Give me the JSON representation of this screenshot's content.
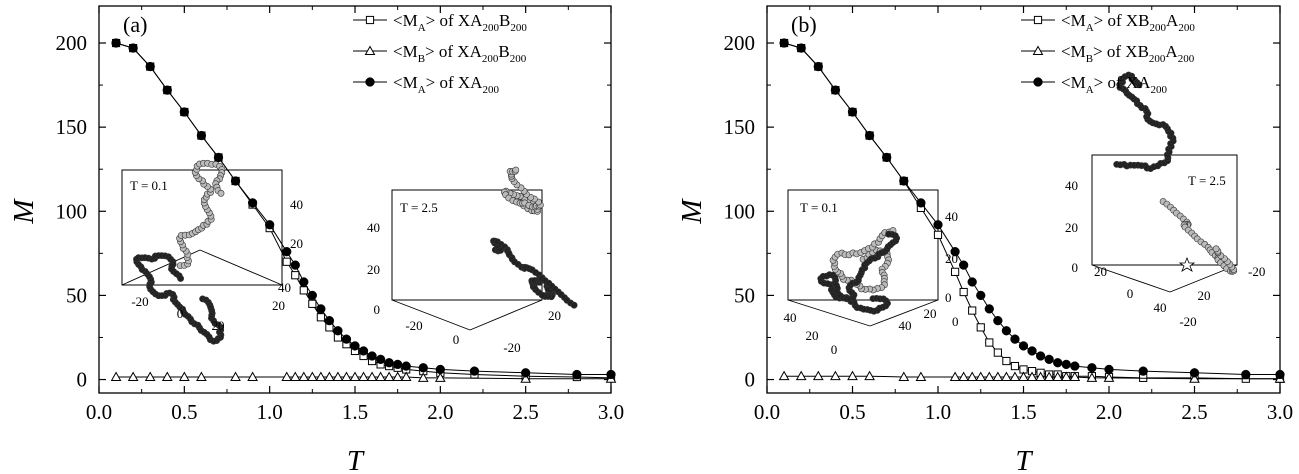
{
  "chart_data": [
    {
      "type": "scatter",
      "panel_label": "(a)",
      "xlabel": "T",
      "ylabel": "M",
      "xlim": [
        0.0,
        3.0
      ],
      "ylim": [
        -8,
        222
      ],
      "x_ticks": [
        "0.0",
        "0.5",
        "1.0",
        "1.5",
        "2.0",
        "2.5",
        "3.0"
      ],
      "y_ticks": [
        "0",
        "50",
        "100",
        "150",
        "200"
      ],
      "legend_position": "top-right",
      "series": [
        {
          "name": "<MA> of XA200B200",
          "legend": {
            "pre": "<M",
            "sub1": "A",
            "mid": "> of XA",
            "sub2": "200",
            "mid2": "B",
            "sub3": "200"
          },
          "marker": "open-square",
          "x": [
            0.1,
            0.2,
            0.3,
            0.4,
            0.5,
            0.6,
            0.7,
            0.8,
            0.9,
            1.0,
            1.1,
            1.15,
            1.2,
            1.25,
            1.3,
            1.35,
            1.4,
            1.45,
            1.5,
            1.55,
            1.6,
            1.65,
            1.7,
            1.75,
            1.8,
            1.9,
            2.0,
            2.2,
            2.5,
            2.8,
            3.0
          ],
          "y": [
            200,
            197,
            186,
            172,
            159,
            145,
            132,
            118,
            104,
            90,
            70,
            62,
            53,
            45,
            37,
            31,
            25,
            21,
            17,
            14,
            11,
            9,
            8,
            7,
            6,
            5,
            4,
            3,
            2,
            1.5,
            1
          ]
        },
        {
          "name": "<MB> of XA200B200",
          "legend": {
            "pre": "<M",
            "sub1": "B",
            "mid": "> of XA",
            "sub2": "200",
            "mid2": "B",
            "sub3": "200"
          },
          "marker": "open-triangle",
          "x": [
            0.1,
            0.2,
            0.3,
            0.4,
            0.5,
            0.6,
            0.8,
            0.9,
            1.1,
            1.15,
            1.2,
            1.25,
            1.3,
            1.35,
            1.4,
            1.45,
            1.5,
            1.55,
            1.6,
            1.65,
            1.7,
            1.75,
            1.8,
            1.9,
            2.0,
            2.5,
            3.0
          ],
          "y": [
            1.5,
            1.5,
            1.5,
            1.5,
            1.5,
            1.5,
            1.5,
            1.5,
            1.5,
            1.5,
            1.5,
            1.5,
            1.5,
            1.5,
            1.5,
            1.5,
            1.5,
            1.5,
            1.5,
            1.5,
            1.5,
            1.5,
            1.5,
            1,
            1,
            0.5,
            0.5
          ]
        },
        {
          "name": "<MA> of XA200",
          "legend": {
            "pre": "<M",
            "sub1": "A",
            "mid": "> of XA",
            "sub2": "200",
            "mid2": "",
            "sub3": ""
          },
          "marker": "filled-circle",
          "x": [
            0.1,
            0.2,
            0.3,
            0.4,
            0.5,
            0.6,
            0.7,
            0.8,
            0.9,
            1.0,
            1.1,
            1.15,
            1.2,
            1.25,
            1.3,
            1.35,
            1.4,
            1.45,
            1.5,
            1.55,
            1.6,
            1.65,
            1.7,
            1.75,
            1.8,
            1.9,
            2.0,
            2.2,
            2.5,
            2.8,
            3.0
          ],
          "y": [
            200,
            197,
            186,
            172,
            159,
            145,
            132,
            118,
            105,
            92,
            76,
            68,
            58,
            50,
            42,
            35,
            29,
            24,
            20,
            17,
            14,
            12,
            10,
            9,
            8,
            7,
            6,
            5,
            4,
            3,
            3
          ]
        }
      ],
      "insets": [
        {
          "label": "T = 0.1",
          "ticks": [
            "40",
            "20",
            "-20",
            "0",
            "20",
            "20",
            "40"
          ]
        },
        {
          "label": "T = 2.5",
          "ticks": [
            "40",
            "20",
            "20",
            "0",
            "-20",
            "0",
            "20",
            "-20"
          ]
        }
      ]
    },
    {
      "type": "scatter",
      "panel_label": "(b)",
      "xlabel": "T",
      "ylabel": "M",
      "xlim": [
        0.0,
        3.0
      ],
      "ylim": [
        -8,
        222
      ],
      "x_ticks": [
        "0.0",
        "0.5",
        "1.0",
        "1.5",
        "2.0",
        "2.5",
        "3.0"
      ],
      "y_ticks": [
        "0",
        "50",
        "100",
        "150",
        "200"
      ],
      "legend_position": "top-right",
      "series": [
        {
          "name": "<MA> of XB200A200",
          "legend": {
            "pre": "<M",
            "sub1": "A",
            "mid": "> of XB",
            "sub2": "200",
            "mid2": "A",
            "sub3": "200"
          },
          "marker": "open-square",
          "x": [
            0.1,
            0.2,
            0.3,
            0.4,
            0.5,
            0.6,
            0.7,
            0.8,
            0.9,
            1.0,
            1.1,
            1.15,
            1.2,
            1.25,
            1.3,
            1.35,
            1.4,
            1.45,
            1.5,
            1.55,
            1.6,
            1.65,
            1.7,
            1.75,
            1.8,
            1.9,
            2.0,
            2.2,
            2.5,
            2.8,
            3.0
          ],
          "y": [
            200,
            197,
            186,
            172,
            159,
            145,
            132,
            118,
            102,
            86,
            64,
            52,
            41,
            31,
            22,
            16,
            11,
            8,
            6,
            5,
            4,
            3,
            3,
            2,
            2,
            2,
            1.5,
            1,
            1,
            0.5,
            0.5
          ]
        },
        {
          "name": "<MB> of XB200A200",
          "legend": {
            "pre": "<M",
            "sub1": "B",
            "mid": "> of XB",
            "sub2": "200",
            "mid2": "A",
            "sub3": "200"
          },
          "marker": "open-triangle",
          "x": [
            0.1,
            0.2,
            0.3,
            0.4,
            0.5,
            0.6,
            0.8,
            0.9,
            1.1,
            1.15,
            1.2,
            1.25,
            1.3,
            1.35,
            1.4,
            1.45,
            1.5,
            1.55,
            1.6,
            1.65,
            1.7,
            1.75,
            1.8,
            1.9,
            2.0,
            2.5,
            3.0
          ],
          "y": [
            2,
            2,
            2,
            2,
            2,
            2,
            1.5,
            1.5,
            1.5,
            1.5,
            1.5,
            1.5,
            1.5,
            1.5,
            1.5,
            1.5,
            1.5,
            1.5,
            1.5,
            1.5,
            1.5,
            1.5,
            1.5,
            1,
            1,
            0.5,
            0.5
          ]
        },
        {
          "name": "<MA> of XA200",
          "legend": {
            "pre": "<M",
            "sub1": "A",
            "mid": "> of XA",
            "sub2": "200",
            "mid2": "",
            "sub3": ""
          },
          "marker": "filled-circle",
          "x": [
            0.1,
            0.2,
            0.3,
            0.4,
            0.5,
            0.6,
            0.7,
            0.8,
            0.9,
            1.0,
            1.1,
            1.15,
            1.2,
            1.25,
            1.3,
            1.35,
            1.4,
            1.45,
            1.5,
            1.55,
            1.6,
            1.65,
            1.7,
            1.75,
            1.8,
            1.9,
            2.0,
            2.2,
            2.5,
            2.8,
            3.0
          ],
          "y": [
            200,
            197,
            186,
            172,
            159,
            145,
            132,
            118,
            105,
            92,
            76,
            68,
            58,
            50,
            42,
            35,
            29,
            24,
            20,
            17,
            14,
            12,
            10,
            9,
            8,
            7,
            6,
            5,
            4,
            3,
            3
          ]
        }
      ],
      "insets": [
        {
          "label": "T = 0.1",
          "ticks": [
            "40",
            "20",
            "0",
            "40",
            "20",
            "0",
            "40",
            "20",
            "0"
          ]
        },
        {
          "label": "T = 2.5",
          "ticks": [
            "40",
            "20",
            "0",
            "20",
            "0",
            "40",
            "20",
            "-20",
            "-20"
          ]
        }
      ]
    }
  ]
}
